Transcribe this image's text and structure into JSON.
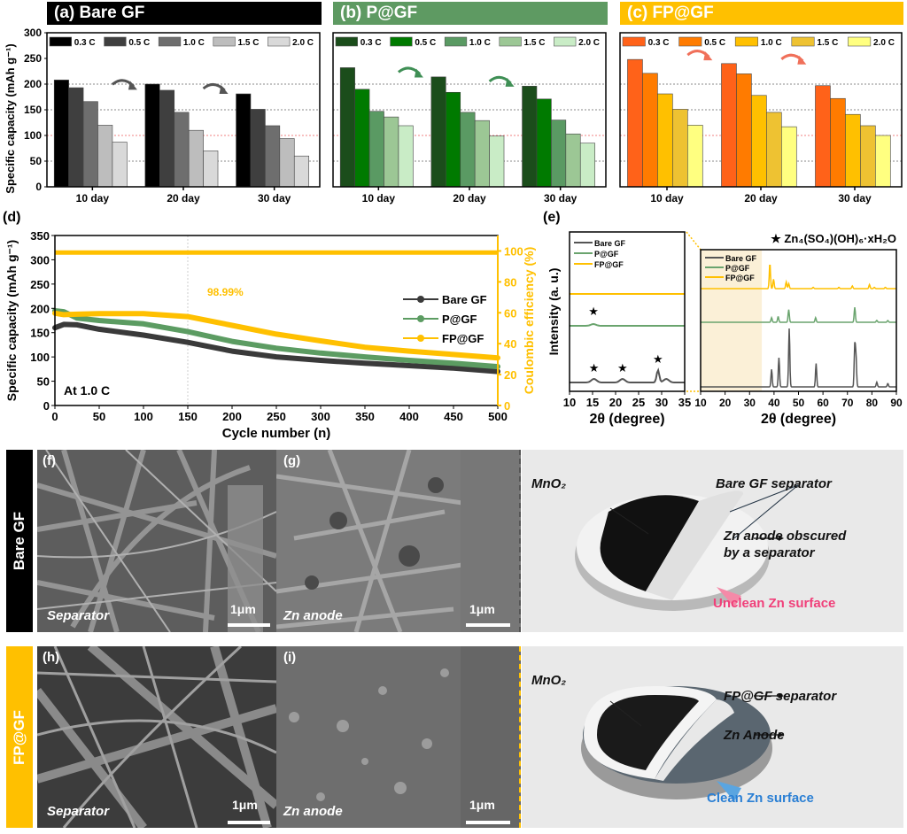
{
  "colors": {
    "bare": [
      "#000000",
      "#3f3f3f",
      "#6e6e6e",
      "#bdbdbd",
      "#d9d9d9"
    ],
    "pgf": [
      "#1b4d1b",
      "#007a00",
      "#5a9a63",
      "#9cc795",
      "#c9ecc6"
    ],
    "fpgf": [
      "#ff6219",
      "#ff7b00",
      "#ffc000",
      "#eec232",
      "#ffff80"
    ],
    "banner_bare": "#000000",
    "banner_pgf": "#5e9a62",
    "banner_fpgf": "#ffc000",
    "ce_color": "#ffc000",
    "line_bare": "#3a3a3a",
    "line_pgf": "#5c9c62",
    "line_fpgf": "#ffc000",
    "unclean": "#f0407a",
    "clean": "#2a7fd4"
  },
  "panels": {
    "a": {
      "title": "(a) Bare GF"
    },
    "b": {
      "title": "(b) P@GF"
    },
    "c": {
      "title": "(c) FP@GF"
    },
    "d": {
      "label": "(d)",
      "annotation_rate": "At 1.0 C",
      "annotation_ce": "98.99%"
    },
    "e": {
      "label": "(e)",
      "star_legend": "★ Zn₄(SO₄)(OH)₆·xH₂O"
    },
    "f": {
      "label": "(f)",
      "caption": "Separator",
      "scale": "1μm"
    },
    "g": {
      "label": "(g)",
      "caption": "Zn anode",
      "scale": "1μm"
    },
    "h": {
      "label": "(h)",
      "caption": "Separator",
      "scale": "1μm"
    },
    "i": {
      "label": "(i)",
      "caption": "Zn anode",
      "scale": "1μm"
    },
    "row1_side": "Bare GF",
    "row2_side": "FP@GF",
    "photo1": {
      "mno2": "MnO₂",
      "sep": "Bare GF separator",
      "anode1": "Zn anode obscured",
      "anode2": "by a separator",
      "surface": "Unclean Zn surface"
    },
    "photo2": {
      "mno2": "MnO₂",
      "sep": "FP@GF separator",
      "anode": "Zn Anode",
      "surface": "Clean Zn surface"
    }
  },
  "chart_data": [
    {
      "id": "a",
      "type": "bar",
      "title": "(a) Bare GF",
      "categories": [
        "10 day",
        "20 day",
        "30 day"
      ],
      "ylabel": "Specific capacity (mAh g⁻¹)",
      "ylim": [
        0,
        300
      ],
      "yticks": [
        0,
        50,
        100,
        150,
        200,
        250,
        300
      ],
      "grid": "dotted at 50,100(red),150,200",
      "legend": "top",
      "series": [
        {
          "name": "0.3 C",
          "values": [
            208,
            200,
            181
          ]
        },
        {
          "name": "0.5 C",
          "values": [
            193,
            188,
            151
          ]
        },
        {
          "name": "1.0 C",
          "values": [
            166,
            145,
            119
          ]
        },
        {
          "name": "1.5 C",
          "values": [
            120,
            110,
            94
          ]
        },
        {
          "name": "2.0 C",
          "values": [
            87,
            70,
            60
          ]
        }
      ]
    },
    {
      "id": "b",
      "type": "bar",
      "title": "(b) P@GF",
      "categories": [
        "10 day",
        "20 day",
        "30 day"
      ],
      "ylim": [
        0,
        300
      ],
      "legend": "top",
      "series": [
        {
          "name": "0.3 C",
          "values": [
            232,
            214,
            196
          ]
        },
        {
          "name": "0.5 C",
          "values": [
            190,
            184,
            171
          ]
        },
        {
          "name": "1.0 C",
          "values": [
            147,
            145,
            130
          ]
        },
        {
          "name": "1.5 C",
          "values": [
            136,
            129,
            103
          ]
        },
        {
          "name": "2.0 C",
          "values": [
            119,
            99,
            85
          ]
        }
      ]
    },
    {
      "id": "c",
      "type": "bar",
      "title": "(c) FP@GF",
      "categories": [
        "10 day",
        "20 day",
        "30 day"
      ],
      "ylim": [
        0,
        300
      ],
      "legend": "top",
      "series": [
        {
          "name": "0.3 C",
          "values": [
            248,
            240,
            197
          ]
        },
        {
          "name": "0.5 C",
          "values": [
            221,
            220,
            172
          ]
        },
        {
          "name": "1.0 C",
          "values": [
            181,
            178,
            141
          ]
        },
        {
          "name": "1.5 C",
          "values": [
            151,
            145,
            119
          ]
        },
        {
          "name": "2.0 C",
          "values": [
            120,
            117,
            100
          ]
        }
      ]
    },
    {
      "id": "d",
      "type": "line",
      "xlabel": "Cycle number (n)",
      "ylabel": "Specific capacity (mAh g⁻¹)",
      "y2label": "Coulombic efficiency (%)",
      "xlim": [
        0,
        500
      ],
      "ylim": [
        0,
        350
      ],
      "y2lim": [
        0,
        110
      ],
      "xticks": [
        0,
        50,
        100,
        150,
        200,
        250,
        300,
        350,
        400,
        450,
        500
      ],
      "yticks": [
        0,
        50,
        100,
        150,
        200,
        250,
        300,
        350
      ],
      "y2ticks": [
        0,
        20,
        40,
        60,
        80,
        100
      ],
      "legend": "right",
      "series": [
        {
          "name": "Bare GF",
          "x": [
            0,
            10,
            25,
            50,
            100,
            150,
            200,
            250,
            300,
            350,
            400,
            450,
            500
          ],
          "y": [
            160,
            167,
            166,
            157,
            145,
            130,
            112,
            100,
            93,
            87,
            82,
            77,
            70
          ]
        },
        {
          "name": "P@GF",
          "x": [
            0,
            10,
            25,
            50,
            100,
            150,
            200,
            250,
            300,
            350,
            400,
            450,
            500
          ],
          "y": [
            195,
            193,
            180,
            175,
            168,
            152,
            132,
            118,
            108,
            100,
            93,
            87,
            80
          ]
        },
        {
          "name": "FP@GF",
          "x": [
            0,
            10,
            25,
            50,
            100,
            150,
            200,
            250,
            300,
            350,
            400,
            450,
            500
          ],
          "y": [
            190,
            187,
            188,
            189,
            189,
            183,
            165,
            147,
            133,
            120,
            112,
            105,
            98
          ]
        },
        {
          "name": "Coulombic efficiency",
          "axis": "y2",
          "x": [
            0,
            500
          ],
          "y": [
            99,
            99
          ]
        }
      ]
    },
    {
      "id": "e-left",
      "type": "line",
      "xlabel": "2θ (degree)",
      "ylabel": "Intensity (a. u.)",
      "xlim": [
        10,
        35
      ],
      "xticks": [
        10,
        15,
        20,
        25,
        30,
        35
      ],
      "legend": "top-left",
      "series": [
        {
          "name": "Bare GF",
          "peaks": [
            15.3,
            21.5,
            29.2,
            31
          ]
        },
        {
          "name": "P@GF",
          "peaks": [
            15.2
          ]
        },
        {
          "name": "FP@GF",
          "peaks": []
        }
      ],
      "markers": [
        {
          "symbol": "★",
          "x": 15.2,
          "series": "P@GF"
        },
        {
          "symbol": "★",
          "x": 15.3,
          "series": "Bare GF"
        },
        {
          "symbol": "★",
          "x": 21.5,
          "series": "Bare GF"
        },
        {
          "symbol": "★",
          "x": 29.2,
          "series": "Bare GF"
        }
      ]
    },
    {
      "id": "e-right",
      "type": "line",
      "xlabel": "2θ (degree)",
      "xlim": [
        10,
        90
      ],
      "xticks": [
        10,
        20,
        30,
        40,
        50,
        60,
        70,
        80,
        90
      ],
      "highlight_range": [
        10,
        35
      ],
      "legend": "top-left",
      "series": [
        {
          "name": "Bare GF",
          "peaks": [
            [
              39,
              0.3
            ],
            [
              42,
              0.5
            ],
            [
              46.2,
              1.0
            ],
            [
              57.2,
              0.4
            ],
            [
              73,
              0.7
            ],
            [
              73.5,
              0.5
            ],
            [
              82,
              0.08
            ],
            [
              86.5,
              0.06
            ]
          ]
        },
        {
          "name": "P@GF",
          "peaks": [
            [
              39,
              0.2
            ],
            [
              41.7,
              0.25
            ],
            [
              46,
              0.55
            ],
            [
              57,
              0.2
            ],
            [
              73,
              0.65
            ],
            [
              82,
              0.08
            ],
            [
              86.5,
              0.08
            ]
          ]
        },
        {
          "name": "FP@GF",
          "peaks": [
            [
              38.3,
              0.75
            ],
            [
              39.8,
              0.28
            ],
            [
              45,
              0.2
            ],
            [
              46,
              0.15
            ],
            [
              56,
              0.04
            ],
            [
              66.5,
              0.04
            ],
            [
              72,
              0.08
            ],
            [
              79,
              0.12
            ],
            [
              81,
              0.04
            ],
            [
              85.5,
              0.04
            ]
          ]
        }
      ]
    }
  ]
}
